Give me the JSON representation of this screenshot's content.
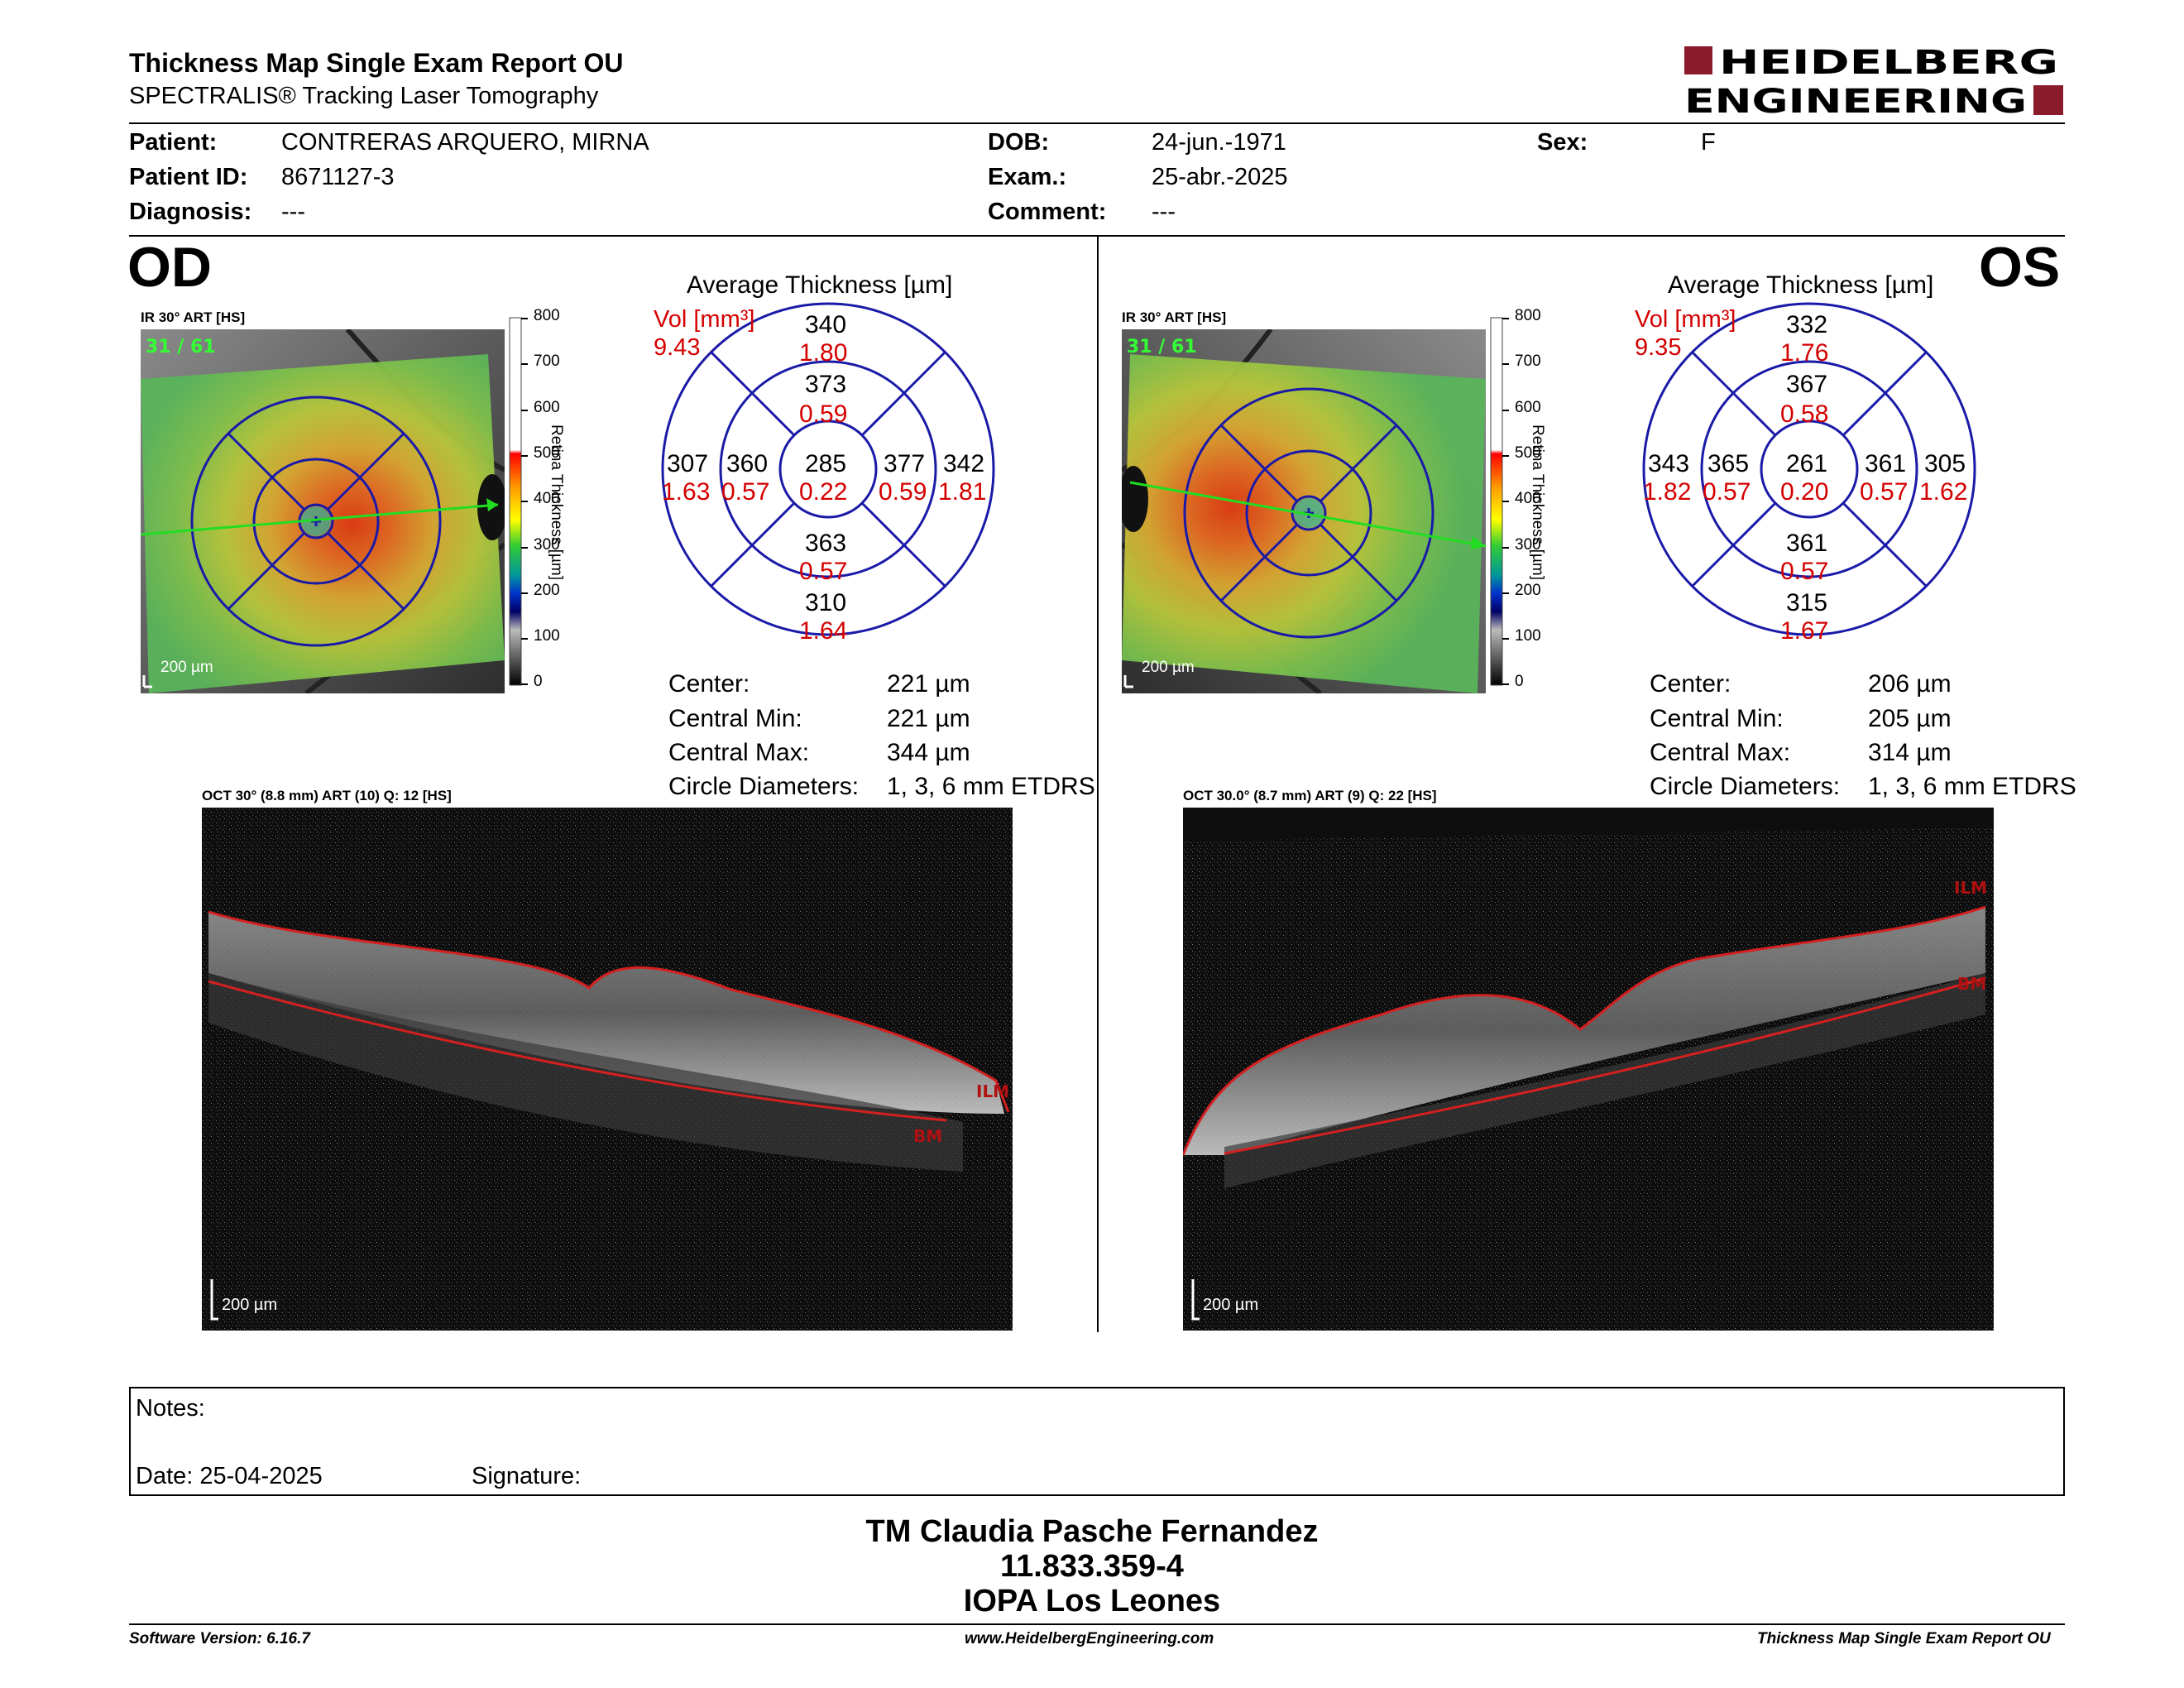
{
  "header": {
    "title": "Thickness Map Single Exam Report OU",
    "subtitle": "SPECTRALIS® Tracking Laser Tomography",
    "brand_line1": "HEIDELBERG",
    "brand_line2": "ENGINEERING",
    "brand_color": "#8b1a2b"
  },
  "patient": {
    "patient_label": "Patient:",
    "patient_value": "CONTRERAS ARQUERO, MIRNA",
    "id_label": "Patient ID:",
    "id_value": "8671127-3",
    "diagnosis_label": "Diagnosis:",
    "diagnosis_value": "---",
    "dob_label": "DOB:",
    "dob_value": "24-jun.-1971",
    "exam_label": "Exam.:",
    "exam_value": "25-abr.-2025",
    "comment_label": "Comment:",
    "comment_value": "---",
    "sex_label": "Sex:",
    "sex_value": "F"
  },
  "od": {
    "eye_label": "OD",
    "fundus_label": "IR 30° ART [HS]",
    "fundus_count": "31 / 61",
    "scale_label": "200 µm",
    "colorbar_ticks": [
      "800",
      "700",
      "600",
      "500",
      "400",
      "300",
      "200",
      "100",
      "0"
    ],
    "colorbar_title": "Retina Thickness [µm]",
    "avg_title": "Average Thickness [µm]",
    "vol_label": "Vol [mm³]",
    "vol_total": "9.43",
    "grid": {
      "center": {
        "t": "285",
        "v": "0.22"
      },
      "inner_top": {
        "t": "373",
        "v": "0.59"
      },
      "inner_bottom": {
        "t": "363",
        "v": "0.57"
      },
      "inner_left": {
        "t": "360",
        "v": "0.57"
      },
      "inner_right": {
        "t": "377",
        "v": "0.59"
      },
      "outer_top": {
        "t": "340",
        "v": "1.80"
      },
      "outer_bottom": {
        "t": "310",
        "v": "1.64"
      },
      "outer_left": {
        "t": "307",
        "v": "1.63"
      },
      "outer_right": {
        "t": "342",
        "v": "1.81"
      }
    },
    "center_label": "Center:",
    "center_value": "221 µm",
    "cmin_label": "Central Min:",
    "cmin_value": "221 µm",
    "cmax_label": "Central Max:",
    "cmax_value": "344 µm",
    "circ_label": "Circle Diameters:",
    "circ_value": "1, 3, 6 mm ETDRS",
    "oct_label": "OCT 30° (8.8 mm) ART (10) Q: 12 [HS]",
    "oct_scale": "200 µm",
    "ilm": "ILM",
    "bm": "BM"
  },
  "os": {
    "eye_label": "OS",
    "fundus_label": "IR 30° ART [HS]",
    "fundus_count": "31 / 61",
    "scale_label": "200 µm",
    "colorbar_ticks": [
      "800",
      "700",
      "600",
      "500",
      "400",
      "300",
      "200",
      "100",
      "0"
    ],
    "colorbar_title": "Retina Thickness [µm]",
    "avg_title": "Average Thickness [µm]",
    "vol_label": "Vol [mm³]",
    "vol_total": "9.35",
    "grid": {
      "center": {
        "t": "261",
        "v": "0.20"
      },
      "inner_top": {
        "t": "367",
        "v": "0.58"
      },
      "inner_bottom": {
        "t": "361",
        "v": "0.57"
      },
      "inner_left": {
        "t": "365",
        "v": "0.57"
      },
      "inner_right": {
        "t": "361",
        "v": "0.57"
      },
      "outer_top": {
        "t": "332",
        "v": "1.76"
      },
      "outer_bottom": {
        "t": "315",
        "v": "1.67"
      },
      "outer_left": {
        "t": "343",
        "v": "1.82"
      },
      "outer_right": {
        "t": "305",
        "v": "1.62"
      }
    },
    "center_label": "Center:",
    "center_value": "206 µm",
    "cmin_label": "Central Min:",
    "cmin_value": "205 µm",
    "cmax_label": "Central Max:",
    "cmax_value": "314 µm",
    "circ_label": "Circle Diameters:",
    "circ_value": "1, 3, 6 mm ETDRS",
    "oct_label": "OCT 30.0° (8.7 mm) ART (9) Q: 22 [HS]",
    "oct_scale": "200 µm",
    "ilm": "ILM",
    "bm": "BM"
  },
  "notes": {
    "notes_label": "Notes:",
    "date_label": "Date: 25-04-2025",
    "signature_label": "Signature:"
  },
  "signoff": {
    "name": "TM Claudia Pasche Fernandez",
    "id": "11.833.359-4",
    "place": "IOPA Los Leones"
  },
  "footer": {
    "software": "Software Version: 6.16.7",
    "website": "www.HeidelbergEngineering.com",
    "report": "Thickness Map Single Exam Report OU"
  },
  "colors": {
    "grid_blue": "#1a1aa8",
    "value_red": "#d40000",
    "scan_line_green": "#22dd22",
    "fundus_count_green": "#33ff33"
  }
}
